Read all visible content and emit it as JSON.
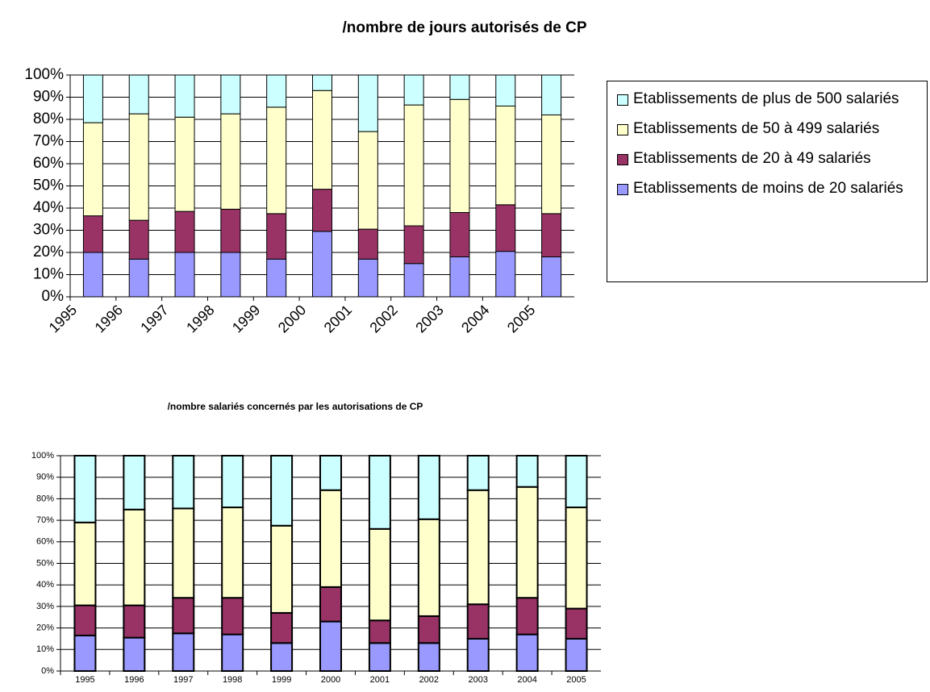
{
  "chart_data": [
    {
      "type": "bar",
      "stacked": true,
      "title": "/nombre de jours autorisés de CP",
      "categories": [
        "1995",
        "1996",
        "1997",
        "1998",
        "1999",
        "2000",
        "2001",
        "2002",
        "2003",
        "2004",
        "2005"
      ],
      "series": [
        {
          "name": "Etablissements de moins de 20 salariés",
          "color": "#9999ff",
          "values": [
            20,
            17,
            20,
            20,
            17,
            29.5,
            17,
            15,
            18,
            20.5,
            18
          ]
        },
        {
          "name": "Etablissements de 20 à 49 salariés",
          "color": "#993366",
          "values": [
            16.5,
            17.5,
            18.5,
            19.5,
            20.5,
            19,
            13.5,
            17,
            20,
            21,
            19.5
          ]
        },
        {
          "name": "Etablissements de 50 à 499 salariés",
          "color": "#ffffcc",
          "values": [
            42,
            48,
            42.5,
            43,
            48,
            44.5,
            44,
            54.5,
            51,
            44.5,
            44.5
          ]
        },
        {
          "name": "Etablissements de plus de 500 salariés",
          "color": "#ccffff",
          "values": [
            21.5,
            17.5,
            19,
            17.5,
            14.5,
            7,
            25.5,
            13.5,
            11,
            14,
            18
          ]
        }
      ],
      "ylim": [
        0,
        100
      ],
      "yticks": [
        {
          "value": 0,
          "label": "0%"
        },
        {
          "value": 10,
          "label": "10%"
        },
        {
          "value": 20,
          "label": "20%"
        },
        {
          "value": 30,
          "label": "30%"
        },
        {
          "value": 40,
          "label": "40%"
        },
        {
          "value": 50,
          "label": "50%"
        },
        {
          "value": 60,
          "label": "60%"
        },
        {
          "value": 70,
          "label": "70%"
        },
        {
          "value": 80,
          "label": "80%"
        },
        {
          "value": 90,
          "label": "90%"
        },
        {
          "value": 100,
          "label": "100%"
        }
      ],
      "grid": true,
      "legend": "right"
    },
    {
      "type": "bar",
      "stacked": true,
      "title": "/nombre salariés concernés par les autorisations de CP",
      "categories": [
        "1995",
        "1996",
        "1997",
        "1998",
        "1999",
        "2000",
        "2001",
        "2002",
        "2003",
        "2004",
        "2005"
      ],
      "series": [
        {
          "color": "#9999ff",
          "values": [
            16.5,
            15.5,
            17.5,
            17,
            13,
            23,
            13,
            13,
            15,
            17,
            15
          ]
        },
        {
          "color": "#993366",
          "values": [
            14,
            15,
            16.5,
            17,
            14,
            16,
            10.5,
            12.5,
            16,
            17,
            14
          ]
        },
        {
          "color": "#ffffcc",
          "values": [
            38.5,
            44.5,
            41.5,
            42,
            40.5,
            45,
            42.5,
            45,
            53,
            51.5,
            47
          ]
        },
        {
          "color": "#ccffff",
          "values": [
            31,
            25,
            24.5,
            24,
            32.5,
            16,
            34,
            29.5,
            16,
            14.5,
            24
          ]
        }
      ],
      "ylim": [
        0,
        100
      ],
      "yticks": [
        {
          "value": 0,
          "label": "0%"
        },
        {
          "value": 10,
          "label": "10%"
        },
        {
          "value": 20,
          "label": "20%"
        },
        {
          "value": 30,
          "label": "30%"
        },
        {
          "value": 40,
          "label": "40%"
        },
        {
          "value": 50,
          "label": "50%"
        },
        {
          "value": 60,
          "label": "60%"
        },
        {
          "value": 70,
          "label": "70%"
        },
        {
          "value": 80,
          "label": "80%"
        },
        {
          "value": 90,
          "label": "90%"
        },
        {
          "value": 100,
          "label": "100%"
        }
      ],
      "grid": true
    }
  ]
}
